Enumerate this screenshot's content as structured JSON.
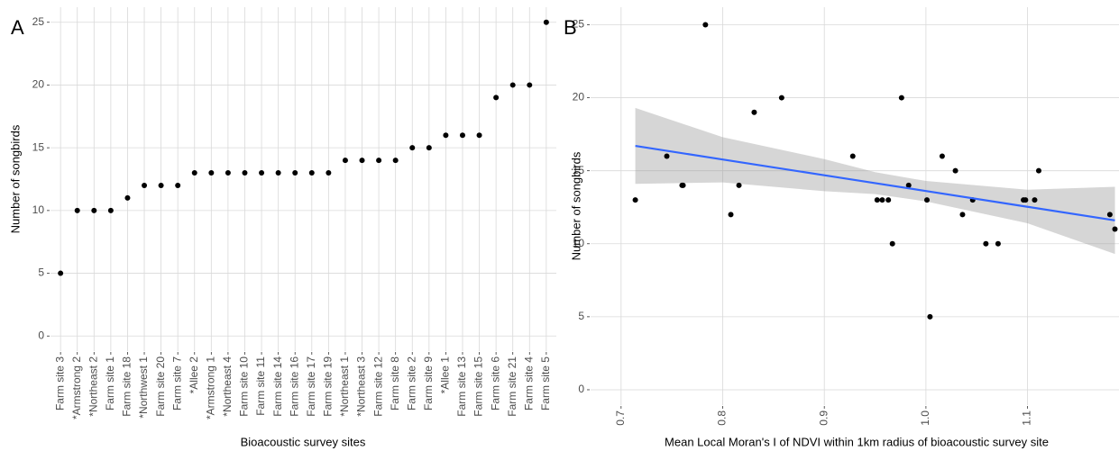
{
  "chart_data": [
    {
      "type": "dot",
      "label": "A",
      "x_label": "Bioacoustic survey sites",
      "y_label": "Number of songbirds",
      "categories": [
        "Farm site 3",
        "*Armstrong 2",
        "*Northeast 2",
        "Farm site 1",
        "Farm site 18",
        "*Northwest 1",
        "Farm site 20",
        "Farm site 7",
        "*Allee 2",
        "*Armstrong 1",
        "*Northeast 4",
        "Farm site 10",
        "Farm site 11",
        "Farm site 14",
        "Farm site 16",
        "Farm site 17",
        "Farm site 19",
        "*Northeast 1",
        "*Northeast 3",
        "Farm site 12",
        "Farm site 8",
        "Farm site 2",
        "Farm site 9",
        "*Allee 1",
        "Farm site 13",
        "Farm site 15",
        "Farm site 6",
        "Farm site 21",
        "Farm site 4",
        "Farm site 5"
      ],
      "values": [
        5,
        10,
        10,
        10,
        11,
        12,
        12,
        12,
        13,
        13,
        13,
        13,
        13,
        13,
        13,
        13,
        13,
        14,
        14,
        14,
        14,
        15,
        15,
        16,
        16,
        16,
        19,
        20,
        20,
        25
      ],
      "color": "#000000",
      "ylim": [
        -1.2,
        26.2
      ],
      "yticks": [
        0,
        5,
        10,
        15,
        20,
        25
      ],
      "grid": true
    },
    {
      "type": "scatter",
      "label": "B",
      "x_label": "Mean Local Moran's I of NDVI within 1km radius of bioacoustic survey site",
      "y_label": "Number of songbirds",
      "x": [
        0.714,
        0.745,
        0.76,
        0.761,
        0.783,
        0.808,
        0.816,
        0.831,
        0.858,
        0.928,
        0.952,
        0.957,
        0.963,
        0.967,
        0.976,
        0.983,
        1.001,
        1.004,
        1.016,
        1.029,
        1.036,
        1.046,
        1.059,
        1.071,
        1.096,
        1.098,
        1.107,
        1.111,
        1.181,
        1.186
      ],
      "values": [
        13,
        16,
        14,
        14,
        25,
        12,
        14,
        19,
        20,
        16,
        13,
        13,
        13,
        10,
        20,
        14,
        13,
        5,
        16,
        15,
        12,
        13,
        10,
        10,
        13,
        13,
        13,
        15,
        12,
        11
      ],
      "color": "#000000",
      "fit": {
        "color": "#3366FF",
        "band_color": "#999999",
        "x": [
          0.714,
          0.8,
          0.9,
          0.95,
          1.0,
          1.1,
          1.186
        ],
        "values": [
          16.7,
          15.77,
          14.69,
          14.15,
          13.61,
          12.53,
          11.6
        ],
        "lower": [
          14.1,
          14.2,
          13.6,
          13.4,
          12.9,
          11.4,
          9.3
        ],
        "upper": [
          19.3,
          17.3,
          15.8,
          14.9,
          14.3,
          13.7,
          13.9
        ]
      },
      "xlim": [
        0.67,
        1.19
      ],
      "xticks": [
        0.7,
        0.8,
        0.9,
        {
          "value": 1,
          "label": "1.0"
        },
        1.1
      ],
      "ylim": [
        -1.05,
        26.2
      ],
      "yticks": [
        0,
        5,
        10,
        15,
        20,
        25
      ],
      "grid": true
    }
  ]
}
